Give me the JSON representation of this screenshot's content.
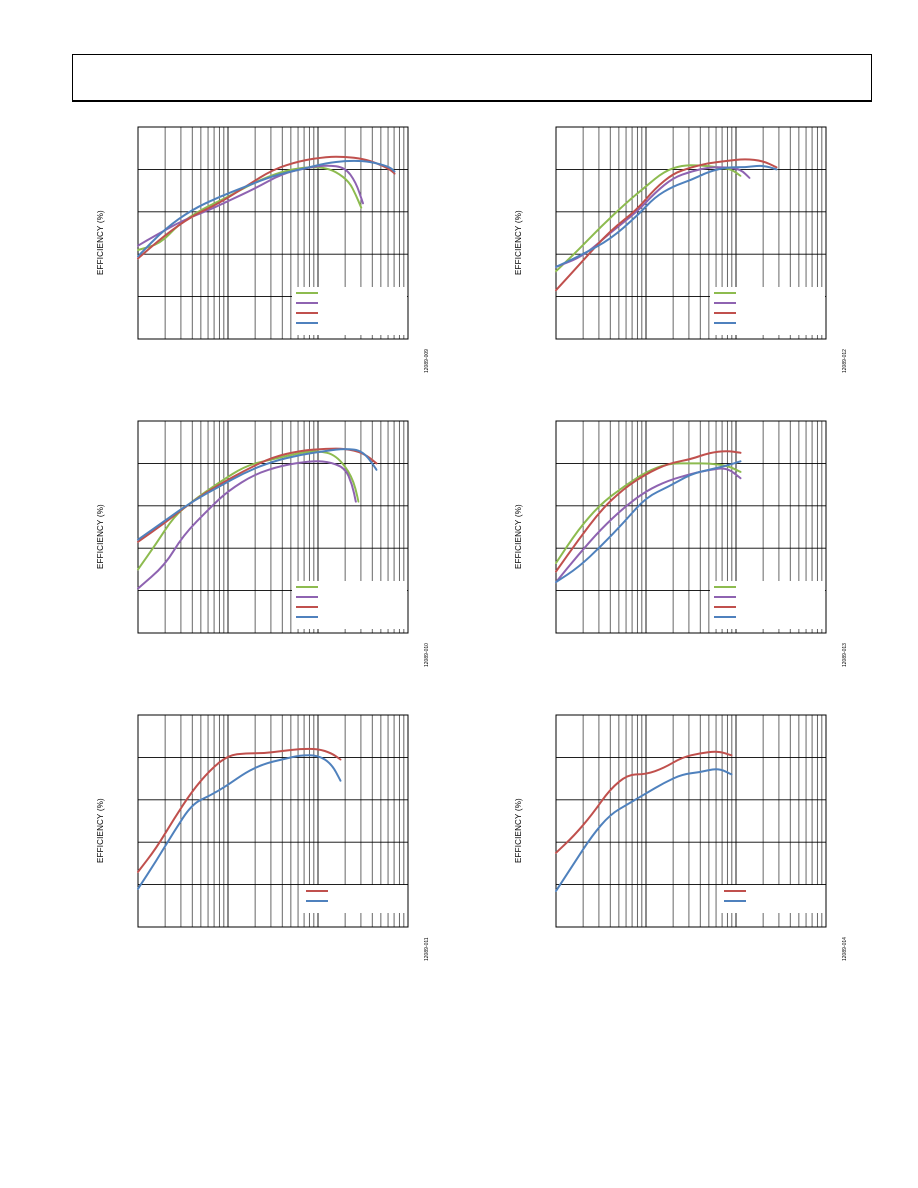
{
  "page": {
    "header_text": ""
  },
  "chart_data": [
    {
      "type": "line",
      "ylabel": "EFFICIENCY (%)",
      "xlabel": "",
      "figure_id": "12089-009",
      "xscale": "log",
      "xdecades": [
        0,
        3
      ],
      "ylim": [
        0,
        5
      ],
      "grid": true,
      "legend_placement": "bottom-right",
      "series": [
        {
          "color": "#8dbb4f",
          "x": [
            0,
            0.25,
            0.45,
            0.7,
            1.0,
            1.3,
            1.6,
            1.85,
            2.05,
            2.2,
            2.35,
            2.42,
            2.48
          ],
          "y": [
            2.1,
            2.25,
            2.7,
            3.05,
            3.35,
            3.7,
            3.95,
            4.05,
            4.05,
            3.95,
            3.7,
            3.4,
            3.1
          ]
        },
        {
          "color": "#8e63b1",
          "x": [
            0,
            0.2,
            0.5,
            0.8,
            1.0,
            1.3,
            1.6,
            1.9,
            2.1,
            2.3,
            2.42,
            2.5
          ],
          "y": [
            2.2,
            2.45,
            2.8,
            3.05,
            3.25,
            3.55,
            3.9,
            4.05,
            4.1,
            4.05,
            3.7,
            3.2
          ]
        },
        {
          "color": "#c0504d",
          "x": [
            0,
            0.3,
            0.6,
            0.9,
            1.2,
            1.5,
            1.8,
            2.1,
            2.3,
            2.5,
            2.65,
            2.8,
            2.85
          ],
          "y": [
            1.9,
            2.45,
            2.9,
            3.2,
            3.6,
            4.0,
            4.2,
            4.3,
            4.3,
            4.25,
            4.15,
            4.0,
            3.9
          ]
        },
        {
          "color": "#4f81bd",
          "x": [
            0,
            0.3,
            0.6,
            0.9,
            1.2,
            1.5,
            1.8,
            2.1,
            2.3,
            2.5,
            2.65,
            2.8,
            2.85
          ],
          "y": [
            1.95,
            2.6,
            3.05,
            3.35,
            3.6,
            3.85,
            4.0,
            4.15,
            4.2,
            4.2,
            4.15,
            4.05,
            3.95
          ]
        }
      ]
    },
    {
      "type": "line",
      "ylabel": "EFFICIENCY (%)",
      "xlabel": "",
      "figure_id": "12089-012",
      "xscale": "log",
      "xdecades": [
        0,
        3
      ],
      "ylim": [
        0,
        5
      ],
      "grid": true,
      "legend_placement": "bottom-right",
      "series": [
        {
          "color": "#8dbb4f",
          "x": [
            0,
            0.2,
            0.5,
            0.8,
            1.0,
            1.2,
            1.4,
            1.6,
            1.8,
            1.95,
            2.05
          ],
          "y": [
            1.6,
            2.0,
            2.65,
            3.25,
            3.6,
            3.95,
            4.1,
            4.1,
            4.05,
            4.0,
            3.85
          ]
        },
        {
          "color": "#8e63b1",
          "x": [
            0,
            0.3,
            0.6,
            0.9,
            1.1,
            1.3,
            1.5,
            1.7,
            1.9,
            2.05,
            2.15
          ],
          "y": [
            1.7,
            1.95,
            2.5,
            3.0,
            3.45,
            3.8,
            3.95,
            4.05,
            4.05,
            4.0,
            3.8
          ]
        },
        {
          "color": "#c0504d",
          "x": [
            0,
            0.3,
            0.6,
            0.9,
            1.1,
            1.3,
            1.5,
            1.7,
            1.9,
            2.1,
            2.3,
            2.45
          ],
          "y": [
            1.15,
            1.85,
            2.55,
            3.05,
            3.55,
            3.9,
            4.05,
            4.15,
            4.2,
            4.25,
            4.2,
            4.05
          ]
        },
        {
          "color": "#4f81bd",
          "x": [
            0,
            0.3,
            0.6,
            0.9,
            1.1,
            1.3,
            1.5,
            1.7,
            1.9,
            2.1,
            2.3,
            2.45
          ],
          "y": [
            1.7,
            2.0,
            2.35,
            2.9,
            3.35,
            3.6,
            3.75,
            3.95,
            4.05,
            4.05,
            4.1,
            4.0
          ]
        }
      ]
    },
    {
      "type": "line",
      "ylabel": "EFFICIENCY (%)",
      "xlabel": "",
      "figure_id": "12089-010",
      "xscale": "log",
      "xdecades": [
        0,
        3
      ],
      "ylim": [
        0,
        5
      ],
      "grid": true,
      "legend_placement": "bottom-right",
      "series": [
        {
          "color": "#8dbb4f",
          "x": [
            0,
            0.2,
            0.4,
            0.6,
            0.9,
            1.2,
            1.5,
            1.8,
            2.0,
            2.2,
            2.38,
            2.45
          ],
          "y": [
            1.5,
            2.1,
            2.75,
            3.1,
            3.55,
            3.95,
            4.1,
            4.25,
            4.3,
            4.2,
            3.7,
            3.1
          ]
        },
        {
          "color": "#8e63b1",
          "x": [
            0,
            0.3,
            0.5,
            0.8,
            1.0,
            1.3,
            1.6,
            1.9,
            2.1,
            2.3,
            2.38,
            2.42
          ],
          "y": [
            1.05,
            1.6,
            2.3,
            2.95,
            3.35,
            3.75,
            3.95,
            4.05,
            4.05,
            3.9,
            3.5,
            3.1
          ]
        },
        {
          "color": "#c0504d",
          "x": [
            0,
            0.3,
            0.6,
            0.9,
            1.2,
            1.5,
            1.8,
            2.1,
            2.3,
            2.5,
            2.65
          ],
          "y": [
            2.15,
            2.6,
            3.1,
            3.5,
            3.85,
            4.15,
            4.3,
            4.35,
            4.35,
            4.25,
            4.0
          ]
        },
        {
          "color": "#4f81bd",
          "x": [
            0,
            0.3,
            0.6,
            0.9,
            1.2,
            1.5,
            1.8,
            2.1,
            2.3,
            2.5,
            2.65
          ],
          "y": [
            2.2,
            2.65,
            3.1,
            3.45,
            3.8,
            4.05,
            4.2,
            4.3,
            4.35,
            4.3,
            3.85
          ]
        }
      ]
    },
    {
      "type": "line",
      "ylabel": "EFFICIENCY (%)",
      "xlabel": "",
      "figure_id": "12089-013",
      "xscale": "log",
      "xdecades": [
        0,
        3
      ],
      "ylim": [
        0,
        5
      ],
      "grid": true,
      "legend_placement": "bottom-right",
      "series": [
        {
          "color": "#8dbb4f",
          "x": [
            0,
            0.25,
            0.5,
            0.75,
            1.0,
            1.25,
            1.5,
            1.7,
            1.9,
            2.05
          ],
          "y": [
            1.65,
            2.45,
            3.05,
            3.45,
            3.8,
            4.0,
            4.0,
            4.0,
            3.95,
            3.8
          ]
        },
        {
          "color": "#8e63b1",
          "x": [
            0,
            0.25,
            0.5,
            0.75,
            1.0,
            1.25,
            1.5,
            1.7,
            1.9,
            2.05
          ],
          "y": [
            1.2,
            1.85,
            2.45,
            2.95,
            3.35,
            3.6,
            3.75,
            3.85,
            3.9,
            3.65
          ]
        },
        {
          "color": "#c0504d",
          "x": [
            0,
            0.25,
            0.5,
            0.75,
            1.0,
            1.25,
            1.5,
            1.7,
            1.9,
            2.05
          ],
          "y": [
            1.45,
            2.2,
            2.9,
            3.4,
            3.75,
            4.0,
            4.1,
            4.25,
            4.3,
            4.25
          ]
        },
        {
          "color": "#4f81bd",
          "x": [
            0,
            0.25,
            0.5,
            0.75,
            1.0,
            1.25,
            1.5,
            1.7,
            1.9,
            2.05
          ],
          "y": [
            1.2,
            1.55,
            2.05,
            2.6,
            3.2,
            3.45,
            3.75,
            3.85,
            3.95,
            4.05
          ]
        }
      ]
    },
    {
      "type": "line",
      "ylabel": "EFFICIENCY (%)",
      "xlabel": "",
      "figure_id": "12089-011",
      "xscale": "log",
      "xdecades": [
        0,
        3
      ],
      "ylim": [
        0,
        5
      ],
      "grid": true,
      "legend_placement": "bottom-right",
      "series": [
        {
          "color": "#c0504d",
          "x": [
            0,
            0.2,
            0.4,
            0.6,
            0.8,
            1.0,
            1.2,
            1.4,
            1.6,
            1.8,
            2.0,
            2.15,
            2.25
          ],
          "y": [
            1.3,
            1.85,
            2.55,
            3.2,
            3.7,
            4.05,
            4.1,
            4.1,
            4.15,
            4.2,
            4.2,
            4.1,
            3.95
          ]
        },
        {
          "color": "#4f81bd",
          "x": [
            0,
            0.2,
            0.4,
            0.6,
            0.8,
            1.0,
            1.2,
            1.4,
            1.6,
            1.8,
            2.0,
            2.15,
            2.25
          ],
          "y": [
            0.9,
            1.55,
            2.25,
            2.9,
            3.1,
            3.35,
            3.65,
            3.85,
            3.95,
            4.05,
            4.05,
            3.85,
            3.45
          ]
        }
      ]
    },
    {
      "type": "line",
      "ylabel": "EFFICIENCY (%)",
      "xlabel": "",
      "figure_id": "12089-014",
      "xscale": "log",
      "xdecades": [
        0,
        3
      ],
      "ylim": [
        0,
        5
      ],
      "grid": true,
      "legend_placement": "bottom-right",
      "series": [
        {
          "color": "#c0504d",
          "x": [
            0,
            0.2,
            0.4,
            0.6,
            0.8,
            1.0,
            1.2,
            1.4,
            1.6,
            1.8,
            1.95
          ],
          "y": [
            1.75,
            2.15,
            2.65,
            3.25,
            3.6,
            3.6,
            3.75,
            4.0,
            4.1,
            4.15,
            4.05
          ]
        },
        {
          "color": "#4f81bd",
          "x": [
            0,
            0.2,
            0.4,
            0.6,
            0.8,
            1.0,
            1.2,
            1.4,
            1.6,
            1.8,
            1.95
          ],
          "y": [
            0.85,
            1.5,
            2.15,
            2.65,
            2.9,
            3.15,
            3.4,
            3.6,
            3.65,
            3.75,
            3.6
          ]
        }
      ]
    }
  ]
}
